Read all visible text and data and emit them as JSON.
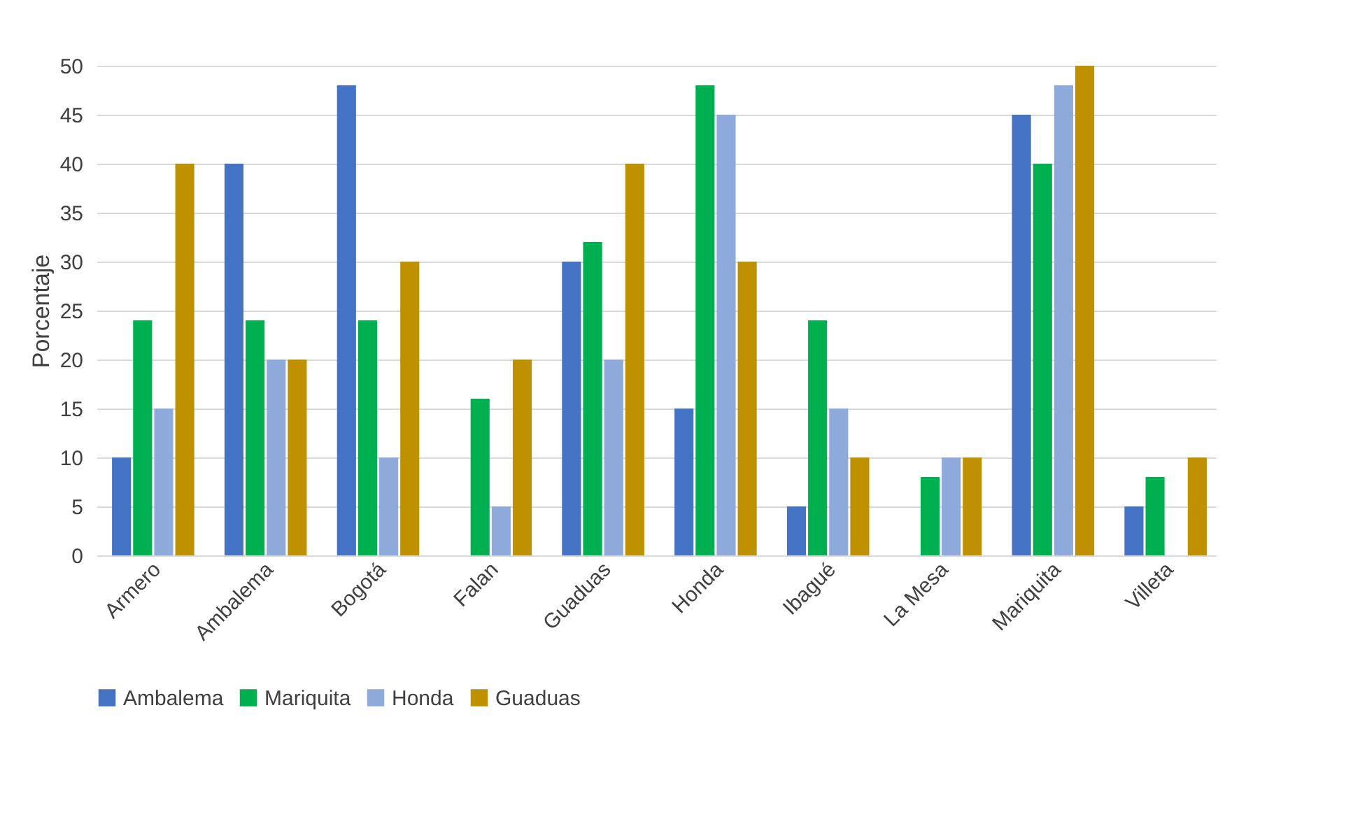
{
  "chart_data": {
    "type": "bar",
    "ylabel": "Porcentaje",
    "categories": [
      "Armero",
      "Ambalema",
      "Bogotá",
      "Falan",
      "Guaduas",
      "Honda",
      "Ibagué",
      "La Mesa",
      "Mariquita",
      "Villeta"
    ],
    "series": [
      {
        "name": "Ambalema",
        "color": "#4472c4",
        "values": [
          10,
          40,
          48,
          0,
          30,
          15,
          5,
          0,
          45,
          5
        ]
      },
      {
        "name": "Mariquita",
        "color": "#00b050",
        "values": [
          24,
          24,
          24,
          16,
          32,
          48,
          24,
          8,
          40,
          8
        ]
      },
      {
        "name": "Honda",
        "color": "#8eaadb",
        "values": [
          15,
          20,
          10,
          5,
          20,
          45,
          15,
          10,
          48,
          0
        ]
      },
      {
        "name": "Guaduas",
        "color": "#bf9000",
        "values": [
          40,
          20,
          30,
          20,
          40,
          30,
          10,
          10,
          50,
          10
        ]
      }
    ],
    "ylim": [
      0,
      50
    ],
    "yticks": [
      0,
      5,
      10,
      15,
      20,
      25,
      30,
      35,
      40,
      45,
      50
    ],
    "grid": "y",
    "legend": "bottom"
  }
}
